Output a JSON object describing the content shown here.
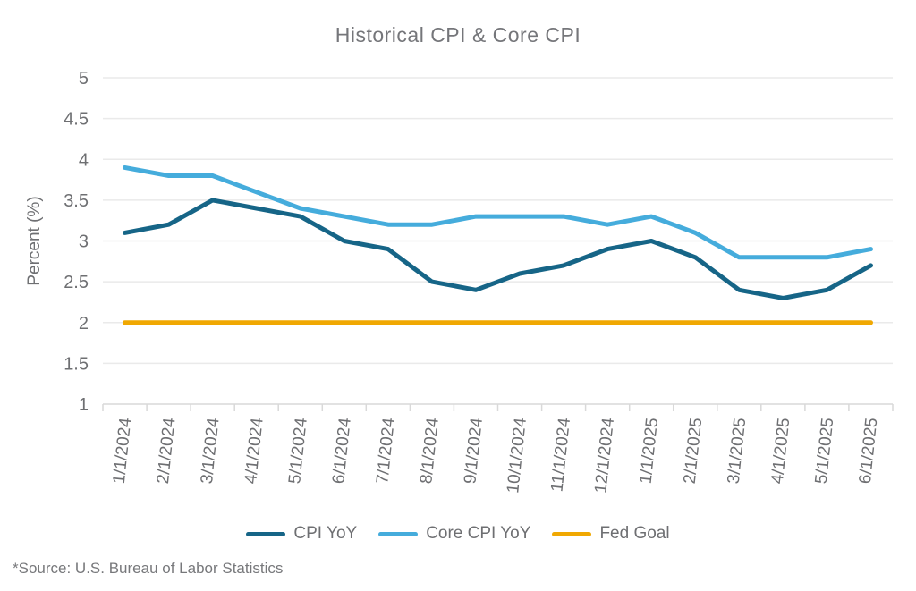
{
  "title": "Historical CPI & Core CPI",
  "source_note": "*Source: U.S. Bureau of Labor Statistics",
  "colors": {
    "cpi": "#166587",
    "core": "#45acdc",
    "fed": "#f0a802",
    "grid": "#eaeaea",
    "axis": "#d9d9d9",
    "text": "#6e6f72",
    "title_text": "#75767a"
  },
  "chart_data": {
    "type": "line",
    "title": "Historical CPI & Core CPI",
    "xlabel": "",
    "ylabel": "Percent (%)",
    "ylim": [
      1,
      5
    ],
    "ytick_step": 0.5,
    "grid": true,
    "legend_position": "bottom",
    "categories": [
      "1/1/2024",
      "2/1/2024",
      "3/1/2024",
      "4/1/2024",
      "5/1/2024",
      "6/1/2024",
      "7/1/2024",
      "8/1/2024",
      "9/1/2024",
      "10/1/2024",
      "11/1/2024",
      "12/1/2024",
      "1/1/2025",
      "2/1/2025",
      "3/1/2025",
      "4/1/2025",
      "5/1/2025",
      "6/1/2025"
    ],
    "series": [
      {
        "name": "CPI YoY",
        "slug": "cpi-yoy",
        "color_key": "cpi",
        "values": [
          3.1,
          3.2,
          3.5,
          3.4,
          3.3,
          3.0,
          2.9,
          2.5,
          2.4,
          2.6,
          2.7,
          2.9,
          3.0,
          2.8,
          2.4,
          2.3,
          2.4,
          2.7
        ]
      },
      {
        "name": "Core CPI YoY",
        "slug": "core-cpi-yoy",
        "color_key": "core",
        "values": [
          3.9,
          3.8,
          3.8,
          3.6,
          3.4,
          3.3,
          3.2,
          3.2,
          3.3,
          3.3,
          3.3,
          3.2,
          3.3,
          3.1,
          2.8,
          2.8,
          2.8,
          2.9
        ]
      },
      {
        "name": "Fed Goal",
        "slug": "fed-goal",
        "color_key": "fed",
        "values": [
          2,
          2,
          2,
          2,
          2,
          2,
          2,
          2,
          2,
          2,
          2,
          2,
          2,
          2,
          2,
          2,
          2,
          2
        ]
      }
    ]
  }
}
